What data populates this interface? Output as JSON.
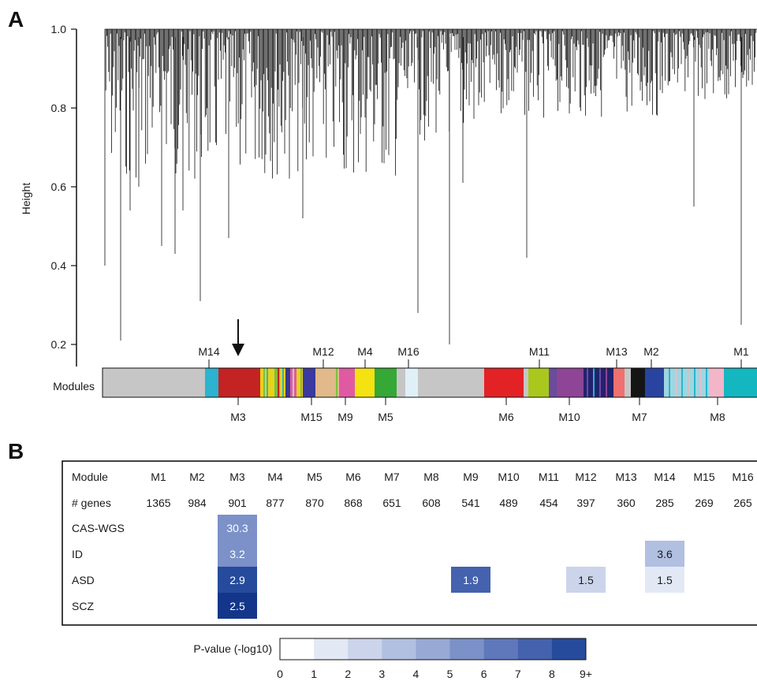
{
  "panels": {
    "a": "A",
    "b": "B"
  },
  "dendrogram": {
    "ylabel": "Height",
    "ylim": [
      0.2,
      1.0
    ],
    "yticks": [
      "1.0",
      "0.8",
      "0.6",
      "0.4",
      "0.2"
    ],
    "track_label": "Modules",
    "arrow_target": "M3",
    "labels_above": [
      "M14",
      "M12",
      "M4",
      "M16",
      "M11",
      "M13",
      "M2",
      "M1"
    ],
    "labels_below": [
      "M3",
      "M15",
      "M9",
      "M5",
      "M6",
      "M10",
      "M7",
      "M8"
    ]
  },
  "chart_data": {
    "type": "table",
    "row_header": "Module",
    "count_header": "# genes",
    "modules": [
      "M1",
      "M2",
      "M3",
      "M4",
      "M5",
      "M6",
      "M7",
      "M8",
      "M9",
      "M10",
      "M11",
      "M12",
      "M13",
      "M14",
      "M15",
      "M16"
    ],
    "gene_counts": [
      "1365",
      "984",
      "901",
      "877",
      "870",
      "868",
      "651",
      "608",
      "541",
      "489",
      "454",
      "397",
      "360",
      "285",
      "269",
      "265"
    ],
    "rows": [
      {
        "label": "CAS-WGS",
        "cells": [
          {
            "module": "M3",
            "value": "30.3",
            "level": 5
          }
        ]
      },
      {
        "label": "ID",
        "cells": [
          {
            "module": "M3",
            "value": "3.2",
            "level": 5
          },
          {
            "module": "M14",
            "value": "3.6",
            "level": 3
          }
        ]
      },
      {
        "label": "ASD",
        "cells": [
          {
            "module": "M3",
            "value": "2.9",
            "level": 8
          },
          {
            "module": "M9",
            "value": "1.9",
            "level": 7
          },
          {
            "module": "M12",
            "value": "1.5",
            "level": 2
          },
          {
            "module": "M14",
            "value": "1.5",
            "level": 1
          }
        ]
      },
      {
        "label": "SCZ",
        "cells": [
          {
            "module": "M3",
            "value": "2.5",
            "level": 9
          }
        ]
      }
    ],
    "scale": {
      "title": "P-value (-log10)",
      "ticks": [
        "0",
        "1",
        "2",
        "3",
        "4",
        "5",
        "6",
        "7",
        "8",
        "9+"
      ],
      "colors": [
        "#ffffff",
        "#e3e8f5",
        "#cbd4eb",
        "#b1bfe0",
        "#97a9d4",
        "#7b91c8",
        "#5f78bb",
        "#4462ad",
        "#264b9c",
        "#14368a"
      ]
    }
  }
}
